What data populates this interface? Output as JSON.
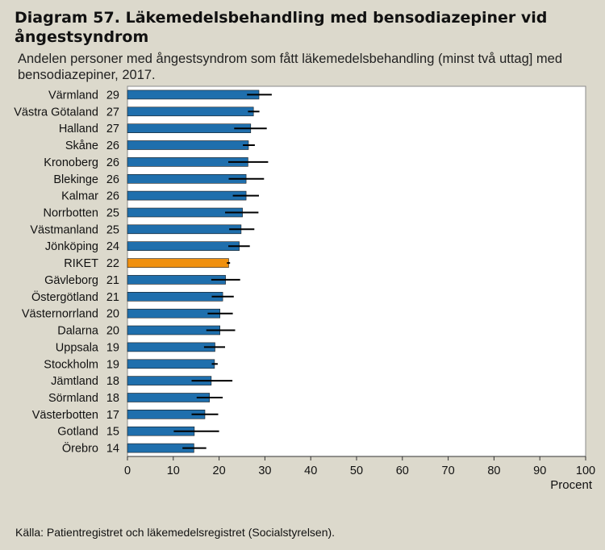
{
  "title": "Diagram 57. Läkemedelsbehandling med bensodiazepiner vid ångestsyndrom",
  "subtitle": "Andelen personer med ångestsyndrom som fått läkemedelsbehandling (minst två uttag] med bensodiazepiner, 2017.",
  "source": "Källa: Patientregistret och läkemedelsregistret (Socialstyrelsen).",
  "colors": {
    "bar": "#1f6fad",
    "highlight": "#f0900f",
    "background": "#dcd9cc",
    "plot_bg": "#ffffff"
  },
  "chart_data": {
    "type": "bar",
    "orientation": "horizontal",
    "xlabel": "Procent",
    "xlim": [
      0,
      100
    ],
    "xticks": [
      0,
      10,
      20,
      30,
      40,
      50,
      60,
      70,
      80,
      90,
      100
    ],
    "grid": false,
    "highlight_category": "RIKET",
    "categories": [
      "Värmland",
      "Västra Götaland",
      "Halland",
      "Skåne",
      "Kronoberg",
      "Blekinge",
      "Kalmar",
      "Norrbotten",
      "Västmanland",
      "Jönköping",
      "RIKET",
      "Gävleborg",
      "Östergötland",
      "Västernorrland",
      "Dalarna",
      "Uppsala",
      "Stockholm",
      "Jämtland",
      "Sörmland",
      "Västerbotten",
      "Gotland",
      "Örebro"
    ],
    "value_labels": [
      "29",
      "27",
      "27",
      "26",
      "26",
      "26",
      "26",
      "25",
      "25",
      "24",
      "22",
      "21",
      "21",
      "20",
      "20",
      "19",
      "19",
      "18",
      "18",
      "17",
      "15",
      "14"
    ],
    "values": [
      28.7,
      27.5,
      26.9,
      26.4,
      26.3,
      25.9,
      25.9,
      25.1,
      24.8,
      24.4,
      22.1,
      21.4,
      20.8,
      20.2,
      20.2,
      19.1,
      19.0,
      18.3,
      17.9,
      16.9,
      14.6,
      14.5
    ],
    "error_low": [
      26.1,
      26.3,
      23.3,
      25.2,
      22.0,
      22.1,
      23.0,
      21.3,
      22.2,
      22.0,
      21.7,
      18.3,
      18.4,
      17.5,
      17.2,
      16.7,
      18.4,
      14.0,
      15.1,
      14.0,
      10.1,
      12.0
    ],
    "error_high": [
      31.5,
      28.8,
      30.4,
      27.8,
      30.7,
      29.8,
      28.7,
      28.6,
      27.7,
      26.7,
      22.4,
      24.6,
      23.2,
      23.0,
      23.5,
      21.3,
      19.7,
      22.9,
      20.8,
      19.8,
      20.0,
      17.2
    ]
  }
}
